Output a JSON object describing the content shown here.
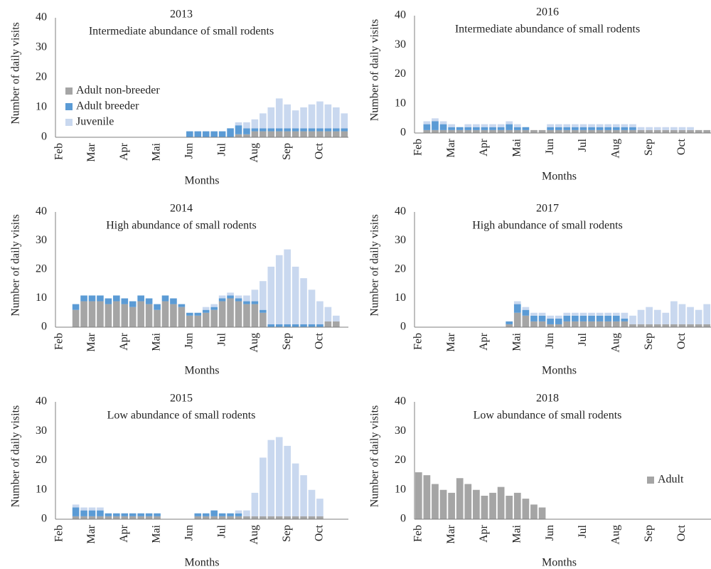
{
  "chart_data": [
    {
      "type": "bar",
      "stacked": true,
      "title": "2013",
      "subtitle": "Intermediate abundance of small rodents",
      "xlabel": "Months",
      "ylabel": "Number of daily visits",
      "legend": "middle-left",
      "categories": [
        "Feb",
        null,
        null,
        null,
        "Mar",
        null,
        null,
        null,
        "Apr",
        null,
        null,
        null,
        "Mai",
        null,
        null,
        null,
        "Jun",
        null,
        null,
        null,
        "Jul",
        null,
        null,
        null,
        "Aug",
        null,
        null,
        null,
        "Sep",
        null,
        null,
        null,
        "Oct",
        null,
        null,
        null
      ],
      "series": [
        {
          "name": "Adult non-breeder",
          "color": "#a5a5a5",
          "values": [
            0,
            0,
            0,
            0,
            0,
            0,
            0,
            0,
            0,
            0,
            0,
            0,
            0,
            0,
            0,
            0,
            0,
            0,
            0,
            0,
            0,
            0,
            1,
            1,
            2,
            2,
            2,
            2,
            2,
            2,
            2,
            2,
            2,
            2,
            2,
            2
          ]
        },
        {
          "name": "Adult breeder",
          "color": "#5b9bd5",
          "values": [
            0,
            0,
            0,
            0,
            0,
            0,
            0,
            0,
            0,
            0,
            0,
            0,
            0,
            0,
            0,
            0,
            2,
            2,
            2,
            2,
            2,
            3,
            3,
            2,
            1,
            1,
            1,
            1,
            1,
            1,
            1,
            1,
            1,
            1,
            1,
            1
          ]
        },
        {
          "name": "Juvenile",
          "color": "#c9d8ef",
          "values": [
            0,
            0,
            0,
            0,
            0,
            0,
            0,
            0,
            0,
            0,
            0,
            0,
            0,
            0,
            0,
            0,
            0,
            0,
            0,
            0,
            0,
            0,
            1,
            2,
            3,
            5,
            7,
            10,
            8,
            6,
            7,
            8,
            9,
            8,
            7,
            5
          ]
        }
      ],
      "ylim": [
        0,
        40
      ],
      "yticks": [
        0,
        10,
        20,
        30,
        40
      ]
    },
    {
      "type": "bar",
      "stacked": true,
      "title": "2014",
      "subtitle": "High abundance of small rodents",
      "xlabel": "Months",
      "ylabel": "Number of daily visits",
      "categories": [
        "Feb",
        null,
        null,
        null,
        "Mar",
        null,
        null,
        null,
        "Apr",
        null,
        null,
        null,
        "Mai",
        null,
        null,
        null,
        "Jun",
        null,
        null,
        null,
        "Jul",
        null,
        null,
        null,
        "Aug",
        null,
        null,
        null,
        "Sep",
        null,
        null,
        null,
        "Oct",
        null,
        null,
        null
      ],
      "series": [
        {
          "color": "#a5a5a5",
          "values": [
            0,
            0,
            6,
            9,
            9,
            9,
            8,
            9,
            8,
            7,
            9,
            8,
            6,
            9,
            8,
            7,
            4,
            4,
            5,
            6,
            9,
            10,
            9,
            8,
            8,
            5,
            0,
            0,
            0,
            0,
            0,
            0,
            0,
            2,
            2,
            0
          ]
        },
        {
          "color": "#5b9bd5",
          "values": [
            0,
            0,
            2,
            2,
            2,
            2,
            2,
            2,
            2,
            2,
            2,
            2,
            2,
            2,
            2,
            1,
            1,
            1,
            1,
            1,
            1,
            1,
            1,
            1,
            1,
            1,
            1,
            1,
            1,
            1,
            1,
            1,
            1,
            0,
            0,
            0
          ]
        },
        {
          "color": "#c9d8ef",
          "values": [
            0,
            0,
            0,
            0,
            0,
            0,
            0,
            0,
            0,
            0,
            0,
            0,
            0,
            0,
            0,
            0,
            0,
            0,
            1,
            1,
            1,
            1,
            1,
            2,
            4,
            10,
            20,
            24,
            26,
            20,
            16,
            12,
            8,
            5,
            2,
            0
          ]
        }
      ],
      "ylim": [
        0,
        40
      ],
      "yticks": [
        0,
        10,
        20,
        30,
        40
      ]
    },
    {
      "type": "bar",
      "stacked": true,
      "title": "2015",
      "subtitle": "Low abundance of small rodents",
      "xlabel": "Months",
      "ylabel": "Number of daily visits",
      "categories": [
        "Feb",
        null,
        null,
        null,
        "Mar",
        null,
        null,
        null,
        "Apr",
        null,
        null,
        null,
        "Mai",
        null,
        null,
        null,
        "Jun",
        null,
        null,
        null,
        "Jul",
        null,
        null,
        null,
        "Aug",
        null,
        null,
        null,
        "Sep",
        null,
        null,
        null,
        "Oct",
        null,
        null,
        null
      ],
      "series": [
        {
          "color": "#a5a5a5",
          "values": [
            0,
            0,
            1,
            1,
            1,
            1,
            1,
            1,
            1,
            1,
            1,
            1,
            1,
            0,
            0,
            0,
            0,
            1,
            1,
            1,
            1,
            1,
            1,
            1,
            1,
            1,
            1,
            1,
            1,
            1,
            1,
            1,
            1,
            0,
            0,
            0
          ]
        },
        {
          "color": "#5b9bd5",
          "values": [
            0,
            0,
            3,
            2,
            2,
            2,
            1,
            1,
            1,
            1,
            1,
            1,
            1,
            0,
            0,
            0,
            0,
            1,
            1,
            2,
            1,
            1,
            1,
            0,
            0,
            0,
            0,
            0,
            0,
            0,
            0,
            0,
            0,
            0,
            0,
            0
          ]
        },
        {
          "color": "#c9d8ef",
          "values": [
            0,
            0,
            1,
            1,
            1,
            1,
            0,
            0,
            0,
            0,
            0,
            0,
            0,
            0,
            0,
            0,
            0,
            0,
            0,
            0,
            0,
            0,
            1,
            2,
            8,
            20,
            26,
            27,
            24,
            18,
            14,
            9,
            6,
            0,
            0,
            0
          ]
        }
      ],
      "ylim": [
        0,
        40
      ],
      "yticks": [
        0,
        10,
        20,
        30,
        40
      ]
    },
    {
      "type": "bar",
      "stacked": true,
      "title": "2016",
      "subtitle": "Intermediate abundance of small rodents",
      "xlabel": "Months",
      "ylabel": "Number of daily visits",
      "categories": [
        "Feb",
        null,
        null,
        null,
        "Mar",
        null,
        null,
        null,
        "Apr",
        null,
        null,
        null,
        "Mai",
        null,
        null,
        null,
        "Jun",
        null,
        null,
        null,
        "Jul",
        null,
        null,
        null,
        "Aug",
        null,
        null,
        null,
        "Sep",
        null,
        null,
        null,
        "Oct",
        null,
        null,
        null
      ],
      "series": [
        {
          "color": "#a5a5a5",
          "values": [
            0,
            1,
            1,
            1,
            1,
            1,
            1,
            1,
            1,
            1,
            1,
            1,
            1,
            1,
            1,
            1,
            1,
            1,
            1,
            1,
            1,
            1,
            1,
            1,
            1,
            1,
            1,
            1,
            1,
            1,
            1,
            1,
            1,
            1,
            1,
            1
          ]
        },
        {
          "color": "#5b9bd5",
          "values": [
            0,
            2,
            3,
            2,
            1,
            1,
            1,
            1,
            1,
            1,
            1,
            2,
            1,
            1,
            0,
            0,
            1,
            1,
            1,
            1,
            1,
            1,
            1,
            1,
            1,
            1,
            1,
            0,
            0,
            0,
            0,
            0,
            0,
            0,
            0,
            0
          ]
        },
        {
          "color": "#c9d8ef",
          "values": [
            0,
            1,
            1,
            1,
            1,
            0,
            1,
            1,
            1,
            1,
            1,
            1,
            1,
            0,
            0,
            0,
            1,
            1,
            1,
            1,
            1,
            1,
            1,
            1,
            1,
            1,
            1,
            1,
            1,
            1,
            1,
            1,
            1,
            1,
            0,
            0
          ]
        }
      ],
      "ylim": [
        0,
        40
      ],
      "yticks": [
        0,
        10,
        20,
        30,
        40
      ]
    },
    {
      "type": "bar",
      "stacked": true,
      "title": "2017",
      "subtitle": "High abundance of small rodents",
      "xlabel": "Months",
      "ylabel": "Number of daily visits",
      "categories": [
        "Feb",
        null,
        null,
        null,
        "Mar",
        null,
        null,
        null,
        "Apr",
        null,
        null,
        null,
        "Mai",
        null,
        null,
        null,
        "Jun",
        null,
        null,
        null,
        "Jul",
        null,
        null,
        null,
        "Aug",
        null,
        null,
        null,
        "Sep",
        null,
        null,
        null,
        "Oct",
        null,
        null,
        null
      ],
      "series": [
        {
          "color": "#a5a5a5",
          "values": [
            0,
            0,
            0,
            0,
            0,
            0,
            0,
            0,
            0,
            0,
            0,
            1,
            5,
            4,
            2,
            2,
            1,
            1,
            2,
            2,
            2,
            2,
            2,
            2,
            2,
            2,
            1,
            1,
            1,
            1,
            1,
            1,
            1,
            1,
            1,
            1
          ]
        },
        {
          "color": "#5b9bd5",
          "values": [
            0,
            0,
            0,
            0,
            0,
            0,
            0,
            0,
            0,
            0,
            0,
            1,
            3,
            2,
            2,
            2,
            2,
            2,
            2,
            2,
            2,
            2,
            2,
            2,
            2,
            1,
            0,
            0,
            0,
            0,
            0,
            0,
            0,
            0,
            0,
            0
          ]
        },
        {
          "color": "#c9d8ef",
          "values": [
            0,
            0,
            0,
            0,
            0,
            0,
            0,
            0,
            0,
            0,
            0,
            0,
            1,
            1,
            1,
            1,
            1,
            1,
            1,
            1,
            1,
            1,
            1,
            1,
            1,
            2,
            3,
            5,
            6,
            5,
            4,
            8,
            7,
            6,
            5,
            7
          ]
        }
      ],
      "ylim": [
        0,
        40
      ],
      "yticks": [
        0,
        10,
        20,
        30,
        40
      ]
    },
    {
      "type": "bar",
      "stacked": true,
      "title": "2018",
      "subtitle": "Low abundance of small rodents",
      "xlabel": "Months",
      "ylabel": "Number of daily visits",
      "legend": "bottom-right",
      "categories": [
        "Feb",
        null,
        null,
        null,
        "Mar",
        null,
        null,
        null,
        "Apr",
        null,
        null,
        null,
        "Mai",
        null,
        null,
        null,
        "Jun",
        null,
        null,
        null,
        "Jul",
        null,
        null,
        null,
        "Aug",
        null,
        null,
        null,
        "Sep",
        null,
        null,
        null,
        "Oct",
        null,
        null,
        null
      ],
      "series": [
        {
          "name": "Adult",
          "color": "#a5a5a5",
          "values": [
            16,
            15,
            12,
            10,
            9,
            14,
            12,
            10,
            8,
            9,
            11,
            8,
            9,
            7,
            5,
            4,
            0,
            0,
            0,
            0,
            0,
            0,
            0,
            0,
            0,
            0,
            0,
            0,
            0,
            0,
            0,
            0,
            0,
            0,
            0,
            0
          ]
        }
      ],
      "ylim": [
        0,
        40
      ],
      "yticks": [
        0,
        10,
        20,
        30,
        40
      ]
    }
  ]
}
